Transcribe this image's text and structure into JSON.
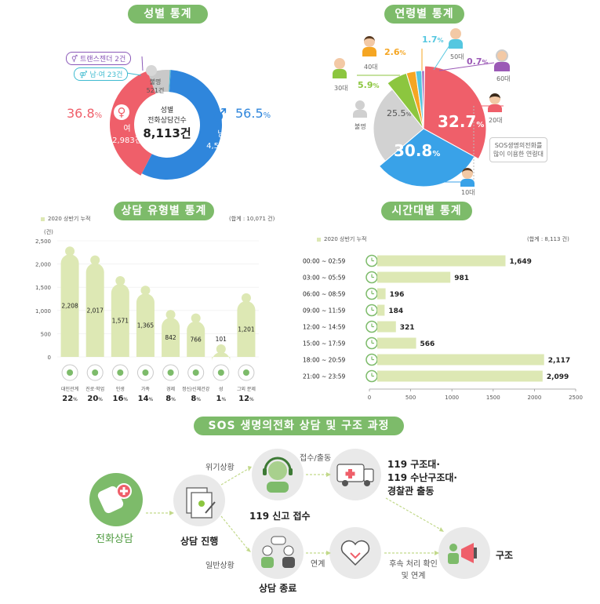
{
  "titles": {
    "gender": "성별 통계",
    "age": "연령별 통계",
    "type": "상담 유형별 통계",
    "time": "시간대별 통계",
    "process": "SOS 생명의전화 상담 및 구조 과정"
  },
  "gender": {
    "center_label_1": "성별",
    "center_label_2": "전화상담건수",
    "center_total": "8,113건",
    "male_pct": "56.5",
    "male_pct_unit": "%",
    "male_label": "남",
    "male_count": "4,584건",
    "female_pct": "36.8",
    "female_pct_unit": "%",
    "female_label": "여",
    "female_count": "2,983건",
    "unknown_label": "불명",
    "unknown_count": "521건",
    "trans_label": "트랜스젠더 2건",
    "both_label": "남·여 23건",
    "colors": {
      "male": "#2f86dc",
      "female": "#ef5f6a",
      "unknown": "#c9c9c9",
      "trans": "#8a58b8",
      "both": "#3fbbd0"
    }
  },
  "age": {
    "slices": [
      {
        "label": "20대",
        "pct": "32.7",
        "color": "#ef5f6a"
      },
      {
        "label": "10대",
        "pct": "30.8",
        "color": "#39a2e8"
      },
      {
        "label": "불명",
        "pct": "25.5",
        "color": "#d2d2d2"
      },
      {
        "label": "30대",
        "pct": "5.9",
        "color": "#8cc63f"
      },
      {
        "label": "40대",
        "pct": "2.6",
        "color": "#f5a623"
      },
      {
        "label": "50대",
        "pct": "1.7",
        "color": "#55c7e0"
      },
      {
        "label": "60대",
        "pct": "0.7",
        "color": "#9b59b6"
      }
    ],
    "pct_unit": "%",
    "note": "SOS생명의전화를 많이 이용한 연령대"
  },
  "type_chart": {
    "legend": "2020 상반기 누적",
    "total": "(합계 : 10,071 건)",
    "y_unit": "(건)"
  },
  "time_chart": {
    "legend": "2020 상반기 누적",
    "total": "(합계 : 8,113 건)"
  },
  "chart_data": [
    {
      "type": "bar",
      "title": "상담 유형별 통계",
      "categories": [
        "대인관계",
        "진로·학업",
        "인생",
        "가족",
        "경제",
        "정신/신체건강",
        "성",
        "그외 문제"
      ],
      "values": [
        2208,
        2017,
        1571,
        1365,
        842,
        766,
        101,
        1201
      ],
      "value_labels": [
        "2,208",
        "2,017",
        "1,571",
        "1,365",
        "842",
        "766",
        "101",
        "1,201"
      ],
      "percent_labels": [
        "22",
        "20",
        "16",
        "14",
        "8",
        "8",
        "1",
        "12"
      ],
      "percent_unit": "%",
      "ylim": [
        0,
        2500
      ],
      "yticks": [
        0,
        500,
        1000,
        1500,
        2000,
        2500
      ],
      "ytick_labels": [
        "0",
        "500",
        "1,000",
        "1,500",
        "2,000",
        "2,500"
      ],
      "ylabel": "(건)",
      "color": "#dde8b4"
    },
    {
      "type": "bar",
      "orientation": "horizontal",
      "title": "시간대별 통계",
      "categories": [
        "00:00 ~ 02:59",
        "03:00 ~ 05:59",
        "06:00 ~ 08:59",
        "09:00 ~ 11:59",
        "12:00 ~ 14:59",
        "15:00 ~ 17:59",
        "18:00 ~ 20:59",
        "21:00 ~ 23:59"
      ],
      "values": [
        1649,
        981,
        196,
        184,
        321,
        566,
        2117,
        2099
      ],
      "value_labels": [
        "1,649",
        "981",
        "196",
        "184",
        "321",
        "566",
        "2,117",
        "2,099"
      ],
      "xlim": [
        0,
        2500
      ],
      "xticks": [
        0,
        500,
        1000,
        1500,
        2000,
        2500
      ],
      "xtick_labels": [
        "0",
        "500",
        "1000",
        "1500",
        "2000",
        "2500"
      ],
      "color": "#dde8b4"
    }
  ],
  "process": {
    "start": "전화상담",
    "progress": "상담 진행",
    "crisis": "위기상황",
    "normal": "일반상황",
    "receive": "119 신고 접수",
    "receive_arrow": "접수/출동",
    "dispatch_1": "119 구조대·",
    "dispatch_2": "119 수난구조대·",
    "dispatch_3": "경찰관 출동",
    "end": "상담 종료",
    "link": "연계",
    "followup_1": "후속 처리 확인",
    "followup_2": "및 연계",
    "rescue": "구조"
  }
}
